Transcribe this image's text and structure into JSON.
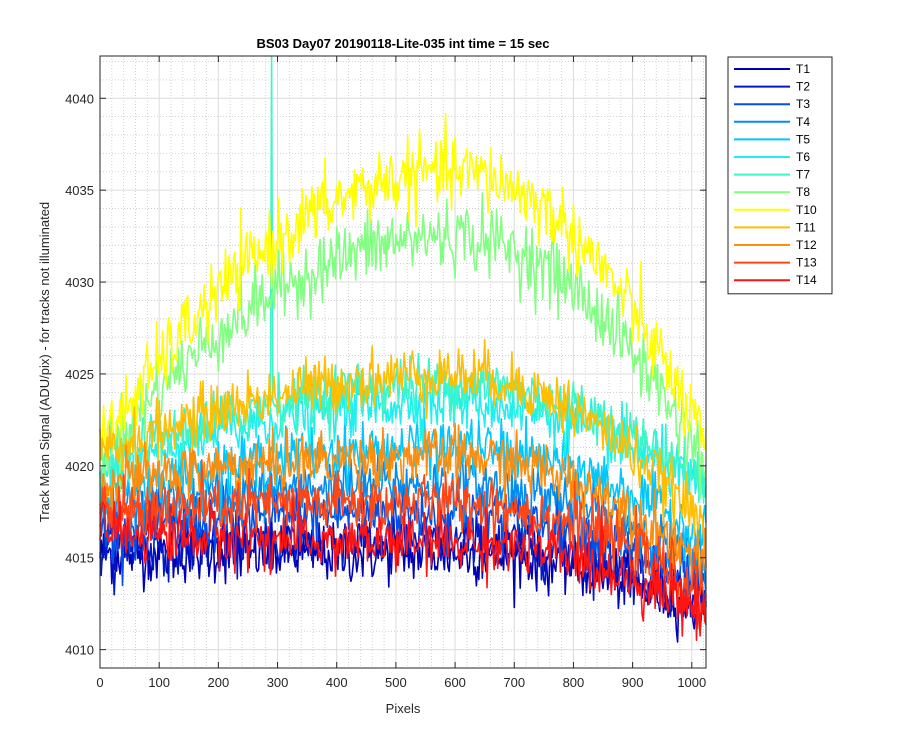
{
  "chart_data": {
    "type": "line",
    "title": "BS03 Day07 20190118-Lite-035 int time = 15 sec",
    "xlabel": "Pixels",
    "ylabel": "Track Mean Signal (ADU/pix) - for tracks not illuminated",
    "xlim": [
      0,
      1024
    ],
    "ylim": [
      4009,
      4042.3
    ],
    "xticks": [
      0,
      100,
      200,
      300,
      400,
      500,
      600,
      700,
      800,
      900,
      1000
    ],
    "yticks": [
      4010,
      4015,
      4020,
      4025,
      4030,
      4035,
      4040
    ],
    "grid": "major and minor",
    "legend_position": "outside-top-right",
    "series": [
      {
        "name": "T1",
        "color": "#0000b4",
        "start": 4015.2,
        "peak": 4015.2,
        "end": 4012.0,
        "noise": 1.3
      },
      {
        "name": "T2",
        "color": "#0019c8",
        "start": 4015.6,
        "peak": 4016.0,
        "end": 4012.5,
        "noise": 1.3
      },
      {
        "name": "T3",
        "color": "#0050e6",
        "start": 4016.5,
        "peak": 4017.5,
        "end": 4013.2,
        "noise": 1.3
      },
      {
        "name": "T4",
        "color": "#008cf0",
        "start": 4017.5,
        "peak": 4019.0,
        "end": 4014.5,
        "noise": 1.3
      },
      {
        "name": "T5",
        "color": "#00c8ff",
        "start": 4018.5,
        "peak": 4021.0,
        "end": 4016.0,
        "noise": 1.3
      },
      {
        "name": "T6",
        "color": "#1ef0ee",
        "start": 4019.5,
        "peak": 4023.5,
        "end": 4018.5,
        "noise": 1.3
      },
      {
        "name": "T7",
        "color": "#3cf5c8",
        "start": 4020.0,
        "peak": 4024.5,
        "end": 4019.0,
        "noise": 1.3,
        "spike": {
          "x": 290,
          "y": 4042.3
        }
      },
      {
        "name": "T8",
        "color": "#82ff82",
        "start": 4020.5,
        "peak": 4032.5,
        "end": 4020.0,
        "noise": 1.6
      },
      {
        "name": "T10",
        "color": "#ffff00",
        "start": 4021.0,
        "peak": 4036.0,
        "end": 4021.0,
        "noise": 1.6
      },
      {
        "name": "T11",
        "color": "#ffbe00",
        "start": 4020.5,
        "peak": 4025.0,
        "end": 4016.5,
        "noise": 1.3
      },
      {
        "name": "T12",
        "color": "#ff8c0a",
        "start": 4019.0,
        "peak": 4020.5,
        "end": 4014.5,
        "noise": 1.3
      },
      {
        "name": "T13",
        "color": "#ff4614",
        "start": 4017.5,
        "peak": 4018.0,
        "end": 4013.0,
        "noise": 1.3
      },
      {
        "name": "T14",
        "color": "#ff1414",
        "start": 4016.5,
        "peak": 4015.8,
        "end": 4012.0,
        "noise": 1.3
      }
    ]
  }
}
